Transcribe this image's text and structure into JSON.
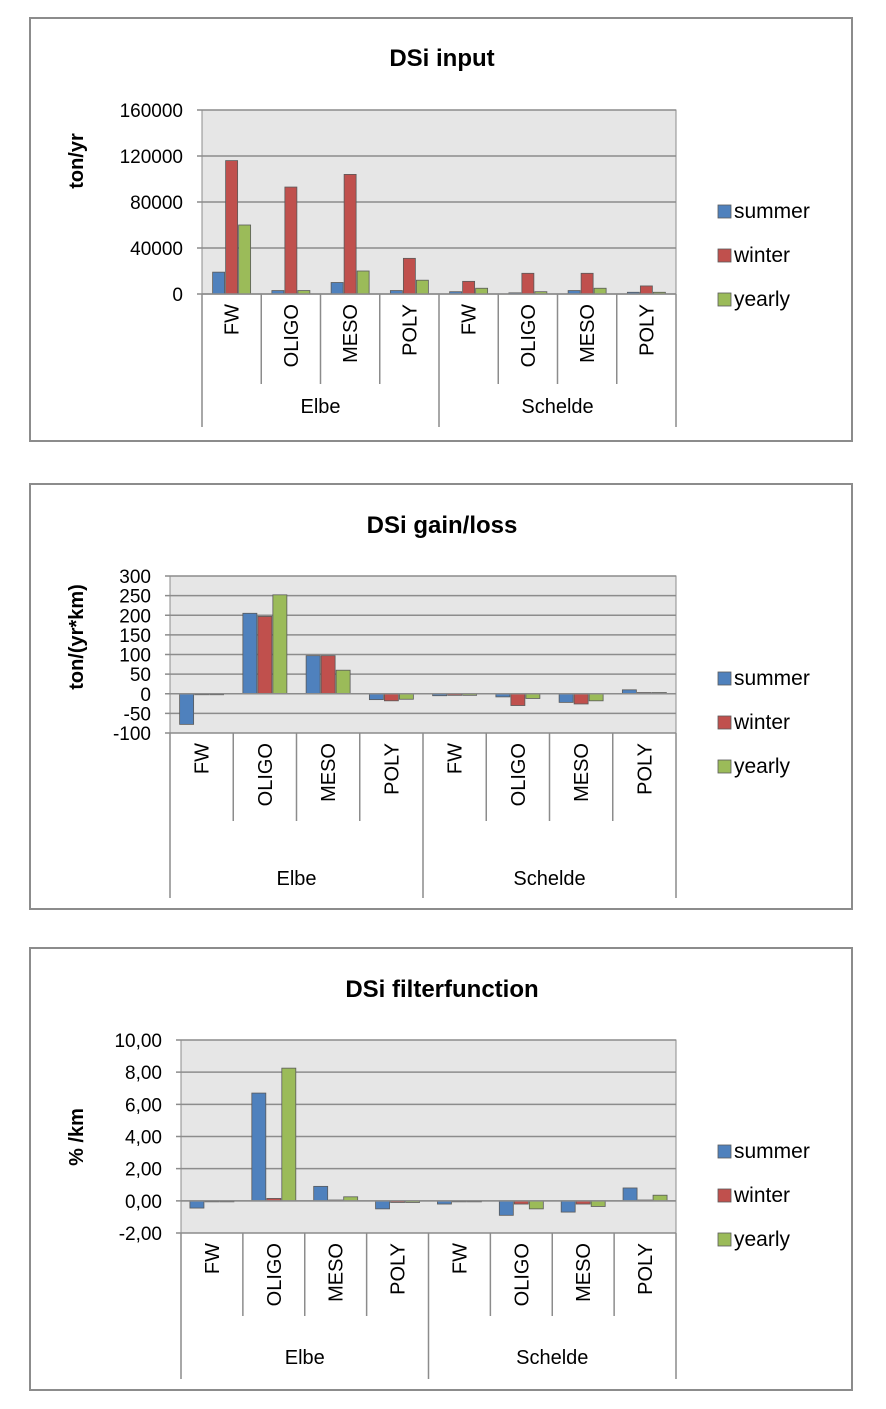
{
  "chart_data": [
    {
      "type": "bar",
      "title": "DSi input",
      "ylabel": "ton/yr",
      "xlabel": "",
      "ylim": [
        0,
        160000
      ],
      "yticks": [
        "160000",
        "120000",
        "80000",
        "40000",
        "0"
      ],
      "ytick_values": [
        160000,
        120000,
        80000,
        40000,
        0
      ],
      "groups": [
        {
          "label": "Elbe",
          "categories": [
            "FW",
            "OLIGO",
            "MESO",
            "POLY"
          ]
        },
        {
          "label": "Schelde",
          "categories": [
            "FW",
            "OLIGO",
            "MESO",
            "POLY"
          ]
        }
      ],
      "series": [
        {
          "name": "summer",
          "color": "#4f81bd",
          "values": [
            19000,
            3000,
            10000,
            3000,
            2000,
            1000,
            3000,
            1500
          ]
        },
        {
          "name": "winter",
          "color": "#c0504d",
          "values": [
            116000,
            93000,
            104000,
            31000,
            11000,
            18000,
            18000,
            7000
          ]
        },
        {
          "name": "yearly",
          "color": "#9bbb59",
          "values": [
            60000,
            3000,
            20000,
            12000,
            5000,
            2000,
            5000,
            1500
          ]
        }
      ],
      "grid": true,
      "legend": "right"
    },
    {
      "type": "bar",
      "title": "DSi gain/loss",
      "ylabel": "ton/(yr*km)",
      "xlabel": "",
      "ylim": [
        -100,
        300
      ],
      "yticks": [
        "300",
        "250",
        "200",
        "150",
        "100",
        "50",
        "0",
        "-50",
        "-100"
      ],
      "ytick_values": [
        300,
        250,
        200,
        150,
        100,
        50,
        0,
        -50,
        -100
      ],
      "groups": [
        {
          "label": "Elbe",
          "categories": [
            "FW",
            "OLIGO",
            "MESO",
            "POLY"
          ]
        },
        {
          "label": "Schelde",
          "categories": [
            "FW",
            "OLIGO",
            "MESO",
            "POLY"
          ]
        }
      ],
      "series": [
        {
          "name": "summer",
          "color": "#4f81bd",
          "values": [
            -78,
            205,
            97,
            -15,
            -5,
            -8,
            -22,
            10
          ]
        },
        {
          "name": "winter",
          "color": "#c0504d",
          "values": [
            -2,
            197,
            97,
            -18,
            -4,
            -30,
            -26,
            3
          ]
        },
        {
          "name": "yearly",
          "color": "#9bbb59",
          "values": [
            -2,
            252,
            60,
            -14,
            -4,
            -12,
            -18,
            3
          ]
        }
      ],
      "grid": true,
      "legend": "right"
    },
    {
      "type": "bar",
      "title": "DSi filterfunction",
      "ylabel": "% /km",
      "xlabel": "",
      "ylim": [
        -2,
        10
      ],
      "yticks": [
        "10,00",
        "8,00",
        "6,00",
        "4,00",
        "2,00",
        "0,00",
        "-2,00"
      ],
      "ytick_values": [
        10,
        8,
        6,
        4,
        2,
        0,
        -2
      ],
      "groups": [
        {
          "label": "Elbe",
          "categories": [
            "FW",
            "OLIGO",
            "MESO",
            "POLY"
          ]
        },
        {
          "label": "Schelde",
          "categories": [
            "FW",
            "OLIGO",
            "MESO",
            "POLY"
          ]
        }
      ],
      "series": [
        {
          "name": "summer",
          "color": "#4f81bd",
          "values": [
            -0.45,
            6.7,
            0.9,
            -0.5,
            -0.2,
            -0.9,
            -0.7,
            0.8
          ]
        },
        {
          "name": "winter",
          "color": "#c0504d",
          "values": [
            -0.05,
            0.15,
            0.05,
            -0.1,
            -0.05,
            -0.2,
            -0.2,
            0.05
          ]
        },
        {
          "name": "yearly",
          "color": "#9bbb59",
          "values": [
            -0.05,
            8.25,
            0.25,
            -0.1,
            -0.05,
            -0.5,
            -0.35,
            0.35
          ]
        }
      ],
      "grid": true,
      "legend": "right"
    }
  ]
}
